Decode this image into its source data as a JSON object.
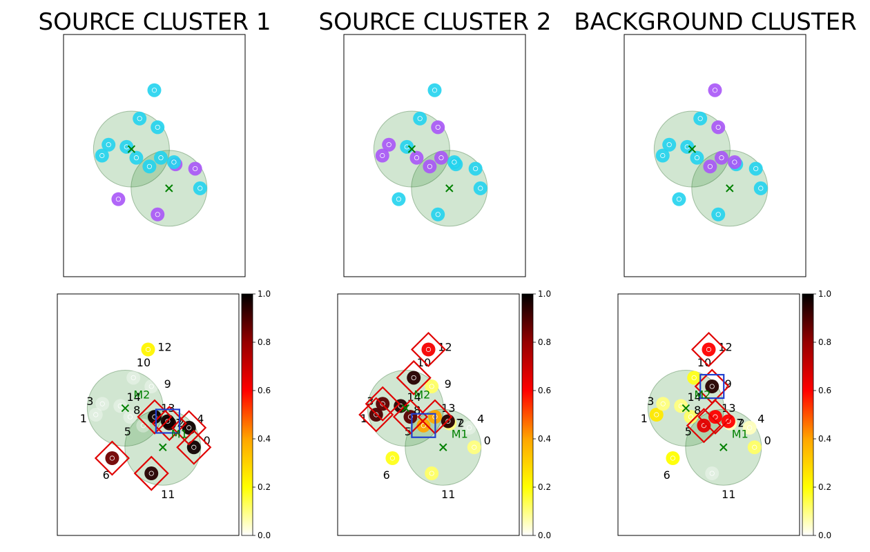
{
  "titles": [
    "SOURCE CLUSTER 1",
    "SOURCE CLUSTER 2",
    "BACKGROUND CLUSTER"
  ],
  "colors": {
    "cyan": "#22d3ee",
    "purple": "#a855f7",
    "circle_fill": "#2e8b2e",
    "centroid": "#008000",
    "red_box": "#e00000",
    "blue_box": "#1f3fd0",
    "frame": "#000000"
  },
  "chart_data": {
    "type": "scatter",
    "xlim": [
      0,
      10
    ],
    "ylim": [
      0,
      10
    ],
    "points": [
      {
        "id": 0,
        "x": 7.8,
        "y": 3.5
      },
      {
        "id": 1,
        "x": 1.8,
        "y": 5.0
      },
      {
        "id": 2,
        "x": 6.3,
        "y": 4.6
      },
      {
        "id": 3,
        "x": 2.2,
        "y": 5.5
      },
      {
        "id": 4,
        "x": 7.5,
        "y": 4.4
      },
      {
        "id": 5,
        "x": 4.7,
        "y": 4.5
      },
      {
        "id": 6,
        "x": 2.8,
        "y": 3.0
      },
      {
        "id": 7,
        "x": 6.2,
        "y": 4.7
      },
      {
        "id": 8,
        "x": 3.9,
        "y": 4.9
      },
      {
        "id": 9,
        "x": 5.2,
        "y": 6.3
      },
      {
        "id": 10,
        "x": 4.1,
        "y": 6.7
      },
      {
        "id": 11,
        "x": 5.2,
        "y": 2.3
      },
      {
        "id": 12,
        "x": 5.0,
        "y": 8.0
      },
      {
        "id": 13,
        "x": 5.4,
        "y": 4.9
      },
      {
        "id": 14,
        "x": 3.3,
        "y": 5.4
      }
    ],
    "centroids": [
      {
        "label": "M1",
        "x": 5.9,
        "y": 3.5
      },
      {
        "label": "M2",
        "x": 3.6,
        "y": 5.3
      }
    ],
    "circle_radius": 2.1,
    "colorbar": {
      "min": 0.0,
      "max": 1.0,
      "ticks": [
        "0.0",
        "0.2",
        "0.4",
        "0.6",
        "0.8",
        "1.0"
      ]
    },
    "panels": [
      {
        "title": "SOURCE CLUSTER 1",
        "top_colors": [
          "cyan",
          "cyan",
          "purple",
          "cyan",
          "purple",
          "cyan",
          "purple",
          "cyan",
          "cyan",
          "cyan",
          "cyan",
          "purple",
          "cyan",
          "cyan",
          "cyan"
        ],
        "values": [
          0.98,
          0.0,
          0.95,
          0.0,
          0.98,
          0.0,
          0.85,
          0.98,
          0.0,
          0.0,
          0.0,
          0.95,
          0.22,
          0.98,
          0.0
        ],
        "red_boxes": [
          0,
          2,
          4,
          6,
          11,
          13
        ],
        "blue_boxes": [
          7
        ]
      },
      {
        "title": "SOURCE CLUSTER 2",
        "top_colors": [
          "cyan",
          "purple",
          "cyan",
          "purple",
          "cyan",
          "purple",
          "cyan",
          "cyan",
          "purple",
          "purple",
          "cyan",
          "cyan",
          "cyan",
          "purple",
          "cyan"
        ],
        "values": [
          0.1,
          0.9,
          0.1,
          0.88,
          0.0,
          0.4,
          0.18,
          0.95,
          0.88,
          0.12,
          0.95,
          0.12,
          0.62,
          0.4,
          0.95
        ],
        "red_boxes": [
          1,
          3,
          8,
          10,
          12,
          13
        ],
        "blue_boxes": [
          5
        ]
      },
      {
        "title": "BACKGROUND CLUSTER",
        "top_colors": [
          "cyan",
          "cyan",
          "cyan",
          "cyan",
          "cyan",
          "purple",
          "cyan",
          "purple",
          "cyan",
          "purple",
          "cyan",
          "cyan",
          "purple",
          "purple",
          "cyan"
        ],
        "values": [
          0.12,
          0.25,
          0.05,
          0.1,
          0.05,
          0.65,
          0.2,
          0.6,
          0.12,
          0.95,
          0.18,
          0.0,
          0.6,
          0.6,
          0.1
        ],
        "red_boxes": [
          5,
          9,
          12,
          13
        ],
        "blue_boxes": [
          9
        ]
      }
    ]
  }
}
